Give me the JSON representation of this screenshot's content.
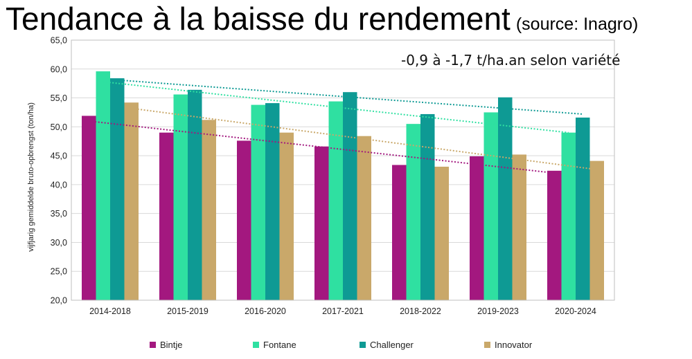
{
  "page": {
    "title": "Tendance à la baisse du rendement",
    "source": "(source: Inagro)"
  },
  "chart_data": {
    "type": "bar",
    "title": "Tendance à la baisse du rendement",
    "annotation": "-0,9 à -1,7 t/ha.an selon variété",
    "xlabel": "",
    "ylabel": "vijfjarig gemiddelde bruto-opbrengst (ton/ha)",
    "ylim": [
      20,
      65
    ],
    "yticks": [
      "20,0",
      "25,0",
      "30,0",
      "35,0",
      "40,0",
      "45,0",
      "50,0",
      "55,0",
      "60,0",
      "65,0"
    ],
    "ytick_values": [
      20,
      25,
      30,
      35,
      40,
      45,
      50,
      55,
      60,
      65
    ],
    "grid": true,
    "legend_position": "bottom",
    "categories": [
      "2014-2018",
      "2015-2019",
      "2016-2020",
      "2017-2021",
      "2018-2022",
      "2019-2023",
      "2020-2024"
    ],
    "series": [
      {
        "name": "Bintje",
        "color": "#a3187f",
        "values": [
          51.9,
          49.0,
          47.6,
          46.6,
          43.4,
          44.9,
          42.4
        ],
        "trend": [
          51.0,
          42.0
        ]
      },
      {
        "name": "Fontane",
        "color": "#2fe0a1",
        "values": [
          59.6,
          55.6,
          53.8,
          54.4,
          50.5,
          52.5,
          49.0
        ],
        "trend": [
          57.8,
          49.0
        ]
      },
      {
        "name": "Challenger",
        "color": "#0e9a94",
        "values": [
          58.4,
          56.4,
          54.1,
          56.0,
          52.2,
          55.1,
          51.6
        ],
        "trend": [
          58.1,
          52.2
        ]
      },
      {
        "name": "Innovator",
        "color": "#c9a86a",
        "values": [
          54.2,
          51.2,
          49.0,
          48.4,
          43.1,
          45.2,
          44.1
        ],
        "trend": [
          53.2,
          42.6
        ]
      }
    ]
  }
}
